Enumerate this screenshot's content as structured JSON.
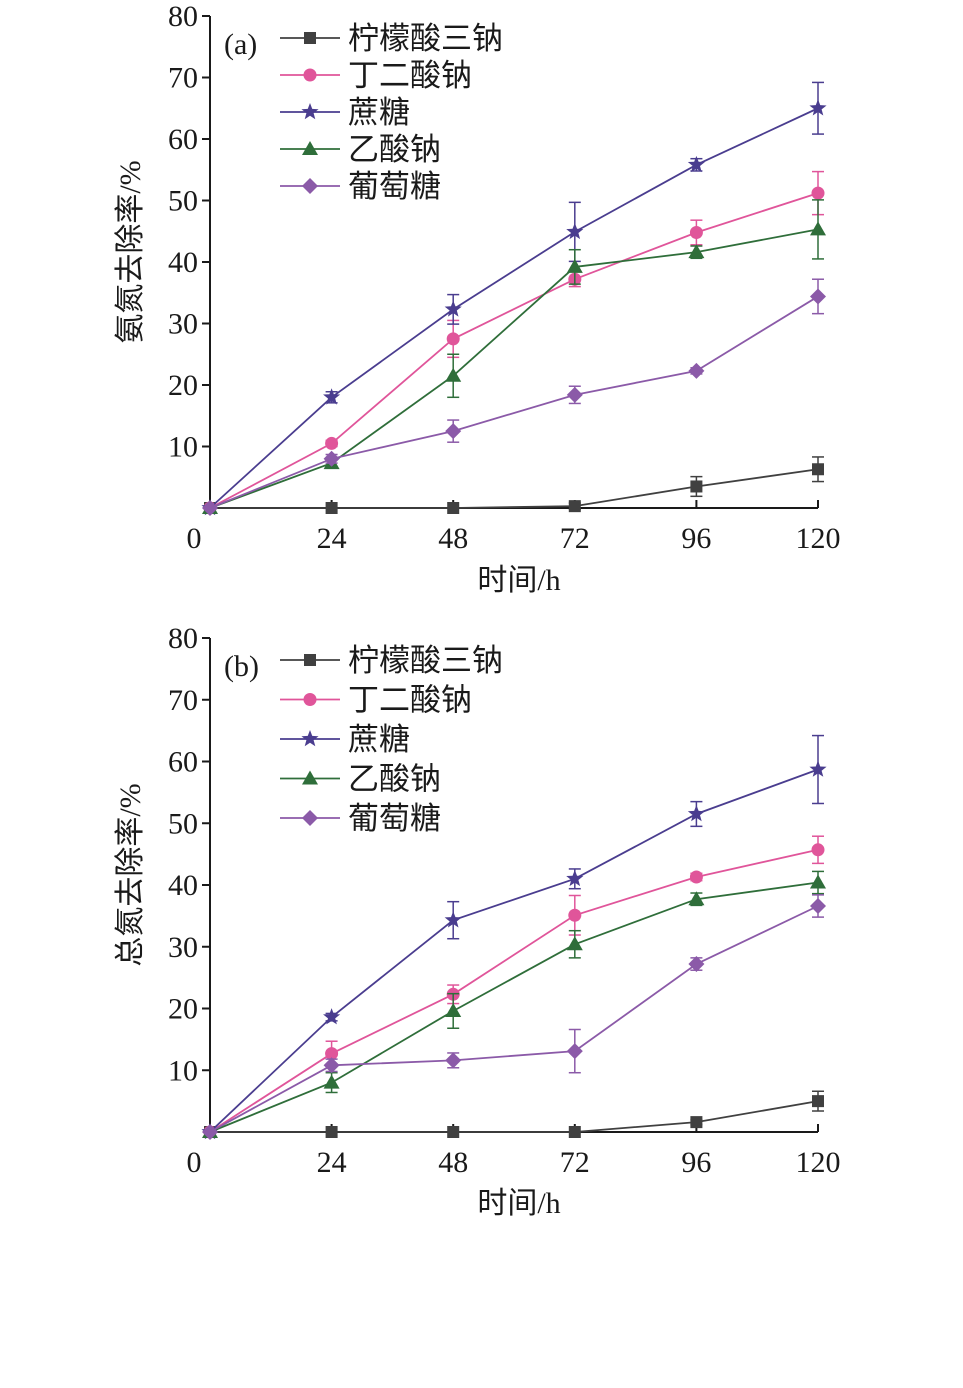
{
  "chart_data": [
    {
      "type": "line",
      "panel_label": "(a)",
      "xlabel": "时间/h",
      "ylabel": "氨氮去除率/%",
      "x": [
        0,
        24,
        48,
        72,
        96,
        120
      ],
      "x_ticks": [
        "0",
        "24",
        "48",
        "72",
        "96",
        "120"
      ],
      "y_ticks": [
        "10",
        "20",
        "30",
        "40",
        "50",
        "60",
        "70",
        "80"
      ],
      "xlim": [
        0,
        120
      ],
      "ylim": [
        0,
        80
      ],
      "grid": false,
      "legend_position": "top-left",
      "series": [
        {
          "name": "柠檬酸三钠",
          "marker": "square",
          "color": "#404040",
          "values": [
            0,
            0,
            0,
            0.3,
            3.5,
            6.3
          ],
          "errors": [
            0,
            0,
            0,
            0.5,
            1.6,
            2.0
          ]
        },
        {
          "name": "丁二酸钠",
          "marker": "circle",
          "color": "#e0559a",
          "values": [
            0,
            10.5,
            27.5,
            37.2,
            44.8,
            51.2
          ],
          "errors": [
            0,
            0.5,
            3.0,
            1.2,
            2.0,
            3.5
          ]
        },
        {
          "name": "蔗糖",
          "marker": "star",
          "color": "#4a3d8f",
          "values": [
            0,
            18.0,
            32.3,
            44.9,
            55.8,
            65.0
          ],
          "errors": [
            0,
            0.9,
            2.4,
            4.8,
            1.0,
            4.2
          ]
        },
        {
          "name": "乙酸钠",
          "marker": "triangle",
          "color": "#2f6e3a",
          "values": [
            0,
            7.3,
            21.5,
            39.2,
            41.6,
            45.3
          ],
          "errors": [
            0,
            0.8,
            3.5,
            2.8,
            1.0,
            4.8
          ]
        },
        {
          "name": "葡萄糖",
          "marker": "diamond",
          "color": "#8b5aa8",
          "values": [
            0,
            8.0,
            12.5,
            18.4,
            22.3,
            34.4
          ],
          "errors": [
            0,
            0.7,
            1.8,
            1.4,
            0.5,
            2.8
          ]
        }
      ]
    },
    {
      "type": "line",
      "panel_label": "(b)",
      "xlabel": "时间/h",
      "ylabel": "总氮去除率/%",
      "x": [
        0,
        24,
        48,
        72,
        96,
        120
      ],
      "x_ticks": [
        "0",
        "24",
        "48",
        "72",
        "96",
        "120"
      ],
      "y_ticks": [
        "10",
        "20",
        "30",
        "40",
        "50",
        "60",
        "70",
        "80"
      ],
      "xlim": [
        0,
        120
      ],
      "ylim": [
        0,
        80
      ],
      "grid": false,
      "legend_position": "top-left",
      "series": [
        {
          "name": "柠檬酸三钠",
          "marker": "square",
          "color": "#404040",
          "values": [
            0,
            0,
            0,
            0,
            1.6,
            5.0
          ],
          "errors": [
            0,
            0,
            0,
            0,
            0.4,
            1.6
          ]
        },
        {
          "name": "丁二酸钠",
          "marker": "circle",
          "color": "#e0559a",
          "values": [
            0,
            12.7,
            22.3,
            35.1,
            41.3,
            45.7
          ],
          "errors": [
            0,
            2.0,
            1.5,
            3.2,
            0.6,
            2.2
          ]
        },
        {
          "name": "蔗糖",
          "marker": "star",
          "color": "#4a3d8f",
          "values": [
            0,
            18.6,
            34.3,
            41.0,
            51.5,
            58.7
          ],
          "errors": [
            0,
            0.6,
            3.0,
            1.6,
            2.0,
            5.5
          ]
        },
        {
          "name": "乙酸钠",
          "marker": "triangle",
          "color": "#2f6e3a",
          "values": [
            0,
            8.0,
            19.6,
            30.4,
            37.7,
            40.4
          ],
          "errors": [
            0,
            1.6,
            2.8,
            2.2,
            1.0,
            1.8
          ]
        },
        {
          "name": "葡萄糖",
          "marker": "diamond",
          "color": "#8b5aa8",
          "values": [
            0,
            10.8,
            11.6,
            13.1,
            27.2,
            36.6
          ],
          "errors": [
            0,
            1.0,
            1.2,
            3.5,
            1.0,
            1.8
          ]
        }
      ]
    }
  ]
}
